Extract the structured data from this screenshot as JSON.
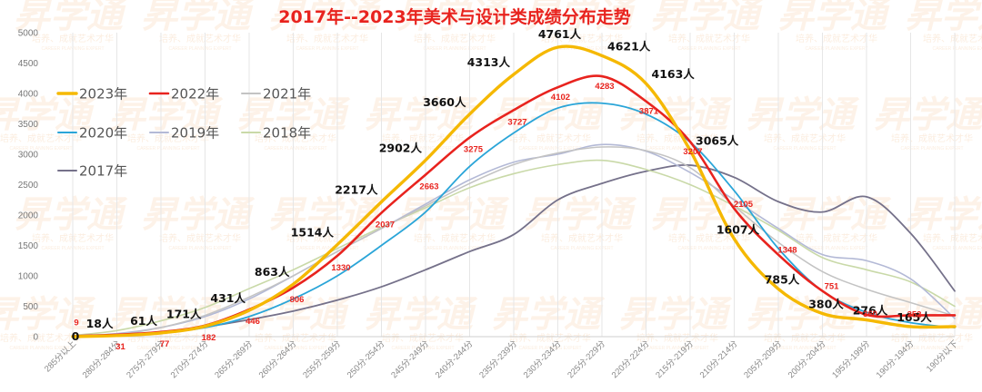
{
  "watermark": {
    "brand": "昇学通",
    "slogan": "培养、成就艺术才华",
    "tagline": "CAREER PLANNING EXPERT"
  },
  "chart_data": {
    "type": "line",
    "title": "2017年--2023年美术与设计类成绩分布走势",
    "ylim": [
      0,
      5000
    ],
    "yticks": [
      0,
      500,
      1000,
      1500,
      2000,
      2500,
      3000,
      3500,
      4000,
      4500,
      5000
    ],
    "grid": "vertical",
    "legend_position": "left",
    "categories": [
      "285分以上",
      "280分-284分",
      "275分-279分",
      "270分-274分",
      "265分-269分",
      "260分-264分",
      "255分-259分",
      "250分-254分",
      "245分-249分",
      "240分-244分",
      "235分-239分",
      "230分-234分",
      "225分-229分",
      "220分-224分",
      "215分-219分",
      "210分-214分",
      "205分-209分",
      "200分-204分",
      "195分-199分",
      "190分-194分",
      "190分以下"
    ],
    "series": [
      {
        "name": "2023年",
        "color": "#f5b800",
        "width": 3.4,
        "values": [
          0,
          18,
          61,
          171,
          431,
          863,
          1514,
          2217,
          2902,
          3660,
          4313,
          4761,
          4621,
          4163,
          3065,
          1607,
          785,
          380,
          276,
          165,
          165
        ],
        "labels": [
          "0",
          "18人",
          "61人",
          "171人",
          "431人",
          "863人",
          "1514人",
          "2217人",
          "2902人",
          "3660人",
          "4313人",
          "4761人",
          "4621人",
          "4163人",
          "3065人",
          "1607人",
          "785人",
          "380人",
          "276人",
          "165人",
          null
        ]
      },
      {
        "name": "2022年",
        "color": "#e8231e",
        "width": 2.6,
        "values": [
          9,
          31,
          77,
          182,
          446,
          806,
          1330,
          2037,
          2663,
          3275,
          3727,
          4102,
          4283,
          3871,
          3207,
          2105,
          1348,
          751,
          360,
          352,
          352
        ],
        "labels": [
          "9",
          "31",
          "77",
          "182",
          "446",
          "806",
          "1330",
          "2037",
          "2663",
          "3275",
          "3727",
          "4102",
          "4283",
          "3871",
          "3207",
          "2105",
          "1348",
          "751",
          "360",
          "352",
          null
        ]
      },
      {
        "name": "2021年",
        "color": "#c3c3c3",
        "width": 1.5,
        "values": [
          0,
          30,
          150,
          350,
          650,
          1000,
          1400,
          1780,
          2150,
          2520,
          2830,
          3020,
          3120,
          3060,
          2780,
          2150,
          1550,
          1070,
          780,
          560,
          340
        ],
        "labels": []
      },
      {
        "name": "2020年",
        "color": "#2aa5d8",
        "width": 1.8,
        "values": [
          0,
          20,
          60,
          150,
          330,
          620,
          1000,
          1500,
          2050,
          2800,
          3350,
          3760,
          3840,
          3660,
          3200,
          2400,
          1450,
          750,
          400,
          230,
          150
        ],
        "labels": []
      },
      {
        "name": "2019年",
        "color": "#b3b9d6",
        "width": 1.6,
        "values": [
          10,
          50,
          150,
          330,
          620,
          1000,
          1400,
          1780,
          2180,
          2580,
          2870,
          3000,
          3160,
          3050,
          2700,
          2250,
          1780,
          1350,
          1250,
          950,
          300
        ],
        "labels": []
      },
      {
        "name": "2018年",
        "color": "#c9d9a8",
        "width": 1.6,
        "values": [
          20,
          100,
          260,
          480,
          790,
          1100,
          1450,
          1800,
          2120,
          2450,
          2680,
          2830,
          2900,
          2750,
          2500,
          2150,
          1750,
          1300,
          1100,
          900,
          500
        ],
        "labels": []
      },
      {
        "name": "2017年",
        "color": "#75718a",
        "width": 1.8,
        "values": [
          0,
          20,
          80,
          160,
          280,
          420,
          600,
          820,
          1100,
          1400,
          1680,
          2250,
          2520,
          2720,
          2820,
          2620,
          2220,
          2050,
          2300,
          1700,
          750
        ],
        "labels": []
      }
    ]
  }
}
